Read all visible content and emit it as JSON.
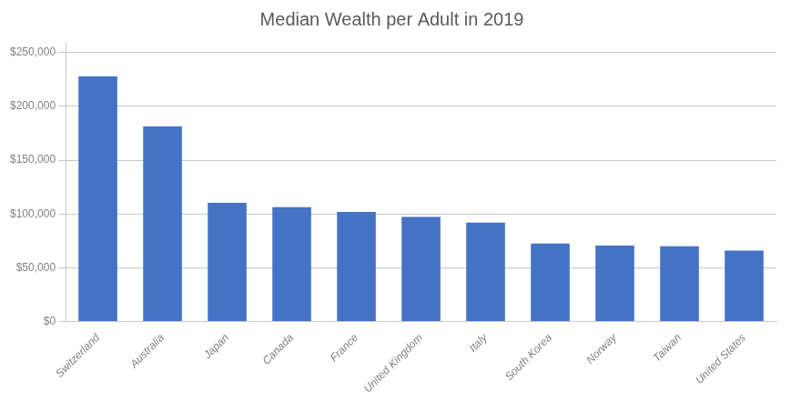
{
  "chart_data": {
    "type": "bar",
    "title": "Median Wealth per Adult in 2019",
    "categories": [
      "Switzerland",
      "Australia",
      "Japan",
      "Canada",
      "France",
      "United Kingdom",
      "Italy",
      "South Korea",
      "Norway",
      "Taiwan",
      "United States"
    ],
    "values": [
      227891,
      181361,
      110408,
      106342,
      101942,
      97169,
      91889,
      72472,
      70627,
      69834,
      65904
    ],
    "color": "#4472C4",
    "ylim": [
      0,
      260000
    ],
    "yticks": [
      {
        "value": 0,
        "label": "$0"
      },
      {
        "value": 50000,
        "label": "$50,000"
      },
      {
        "value": 100000,
        "label": "$100,000"
      },
      {
        "value": 150000,
        "label": "$150,000"
      },
      {
        "value": 200000,
        "label": "$200,000"
      },
      {
        "value": 250000,
        "label": "$250,000"
      }
    ],
    "grid": true
  }
}
